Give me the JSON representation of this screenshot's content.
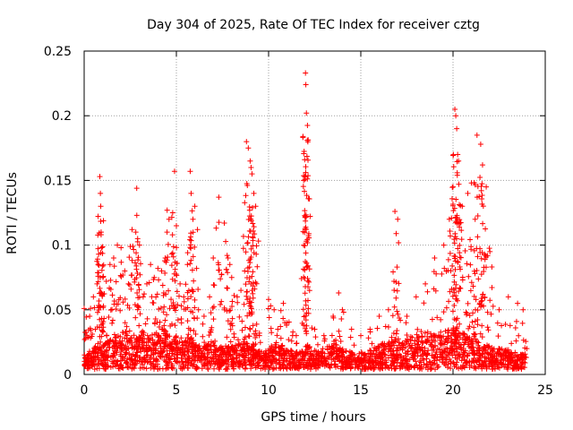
{
  "chart_data": {
    "type": "scatter",
    "title": "Day 304 of 2025, Rate Of TEC Index for receiver cztg",
    "xlabel": "GPS time / hours",
    "ylabel": "ROTI / TECUs",
    "xlim": [
      0,
      25
    ],
    "ylim": [
      0,
      0.25
    ],
    "xticks": [
      0,
      5,
      10,
      15,
      20,
      25
    ],
    "yticks": [
      0,
      0.05,
      0.1,
      0.15,
      0.2,
      0.25
    ],
    "xtick_labels": [
      "0",
      "5",
      "10",
      "15",
      "20",
      "25"
    ],
    "ytick_labels": [
      "0",
      "0.05",
      "0.1",
      "0.15",
      "0.2",
      "0.25"
    ],
    "grid": true,
    "marker": "plus",
    "marker_color": "#ff0000",
    "series": [
      {
        "x": [
          0.0,
          0.15,
          0.3,
          0.5,
          0.7,
          0.85,
          0.88,
          0.9,
          0.92,
          0.95,
          1.0,
          1.2,
          1.4,
          1.6,
          1.8,
          2.0,
          2.2,
          2.4,
          2.6,
          2.8,
          2.85,
          2.9,
          3.0,
          3.2,
          3.4,
          3.6,
          3.8,
          4.0,
          4.2,
          4.4,
          4.5,
          4.6,
          4.8,
          4.9,
          5.0,
          5.2,
          5.4,
          5.6,
          5.75,
          5.8,
          5.9,
          6.0,
          6.2,
          6.5,
          6.8,
          7.0,
          7.3,
          7.6,
          7.8,
          7.9,
          8.0,
          8.3,
          8.5,
          8.7,
          8.8,
          8.9,
          9.0,
          9.05,
          9.1,
          9.2,
          9.3,
          9.5,
          10.0,
          10.3,
          10.5,
          10.8,
          11.0,
          11.3,
          11.5,
          11.9,
          12.0,
          12.02,
          12.05,
          12.1,
          12.5,
          13.0,
          13.5,
          13.8,
          14.0,
          14.5,
          15.0,
          15.5,
          16.0,
          16.5,
          16.8,
          16.85,
          17.0,
          17.5,
          18.0,
          18.5,
          19.0,
          19.5,
          19.8,
          20.0,
          20.1,
          20.15,
          20.2,
          20.25,
          20.3,
          20.5,
          20.8,
          21.0,
          21.2,
          21.3,
          21.5,
          21.6,
          21.8,
          22.0,
          22.5,
          23.0,
          23.5,
          23.8,
          24.0
        ],
        "y": [
          0.051,
          0.03,
          0.045,
          0.06,
          0.07,
          0.153,
          0.14,
          0.13,
          0.11,
          0.098,
          0.062,
          0.072,
          0.085,
          0.09,
          0.1,
          0.098,
          0.08,
          0.07,
          0.112,
          0.11,
          0.144,
          0.105,
          0.1,
          0.06,
          0.07,
          0.085,
          0.075,
          0.082,
          0.08,
          0.09,
          0.127,
          0.12,
          0.125,
          0.157,
          0.115,
          0.07,
          0.06,
          0.085,
          0.157,
          0.14,
          0.12,
          0.13,
          0.05,
          0.045,
          0.06,
          0.09,
          0.137,
          0.117,
          0.09,
          0.085,
          0.075,
          0.06,
          0.065,
          0.08,
          0.18,
          0.175,
          0.165,
          0.16,
          0.155,
          0.14,
          0.13,
          0.03,
          0.058,
          0.05,
          0.035,
          0.055,
          0.04,
          0.03,
          0.03,
          0.15,
          0.233,
          0.224,
          0.202,
          0.181,
          0.035,
          0.03,
          0.045,
          0.063,
          0.05,
          0.035,
          0.03,
          0.035,
          0.045,
          0.05,
          0.072,
          0.126,
          0.12,
          0.045,
          0.06,
          0.07,
          0.09,
          0.1,
          0.12,
          0.145,
          0.205,
          0.2,
          0.19,
          0.17,
          0.165,
          0.13,
          0.14,
          0.148,
          0.12,
          0.185,
          0.178,
          0.162,
          0.145,
          0.095,
          0.05,
          0.06,
          0.055,
          0.05,
          0.02
        ],
        "baseline_x": [
          0.1,
          0.4,
          0.7,
          1.0,
          1.3,
          1.6,
          1.9,
          2.2,
          2.5,
          2.8,
          3.1,
          3.4,
          3.7,
          4.0,
          4.3,
          4.6,
          4.9,
          5.2,
          5.5,
          5.8,
          6.1,
          6.4,
          6.7,
          7.0,
          7.3,
          7.6,
          7.9,
          8.2,
          8.5,
          8.8,
          9.1,
          9.4,
          9.7,
          10.0,
          10.3,
          10.6,
          10.9,
          11.2,
          11.5,
          11.8,
          12.1,
          12.4,
          12.7,
          13.0,
          13.3,
          13.6,
          13.9,
          14.2,
          14.5,
          14.8,
          15.1,
          15.4,
          15.7,
          16.0,
          16.3,
          16.6,
          16.9,
          17.2,
          17.5,
          17.8,
          18.1,
          18.4,
          18.7,
          19.0,
          19.3,
          19.6,
          19.9,
          20.2,
          20.5,
          20.8,
          21.1,
          21.4,
          21.7,
          22.0,
          22.3,
          22.6,
          22.9,
          23.2,
          23.5,
          23.8
        ],
        "baseline_y": [
          0.012,
          0.015,
          0.018,
          0.02,
          0.022,
          0.025,
          0.028,
          0.03,
          0.025,
          0.028,
          0.03,
          0.025,
          0.027,
          0.03,
          0.032,
          0.028,
          0.03,
          0.025,
          0.022,
          0.024,
          0.02,
          0.018,
          0.02,
          0.022,
          0.018,
          0.016,
          0.018,
          0.02,
          0.022,
          0.02,
          0.018,
          0.015,
          0.014,
          0.016,
          0.018,
          0.02,
          0.016,
          0.015,
          0.014,
          0.016,
          0.018,
          0.016,
          0.014,
          0.016,
          0.018,
          0.02,
          0.017,
          0.015,
          0.013,
          0.012,
          0.013,
          0.015,
          0.017,
          0.019,
          0.02,
          0.022,
          0.024,
          0.022,
          0.024,
          0.026,
          0.028,
          0.03,
          0.028,
          0.026,
          0.028,
          0.03,
          0.032,
          0.03,
          0.028,
          0.026,
          0.024,
          0.022,
          0.02,
          0.018,
          0.017,
          0.016,
          0.015,
          0.014,
          0.013,
          0.012
        ]
      }
    ]
  }
}
